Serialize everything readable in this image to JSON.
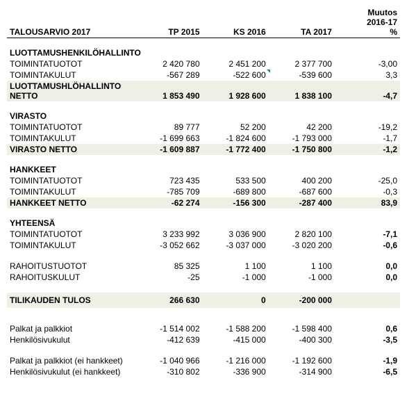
{
  "header": {
    "title": "TALOUSARVIO 2017",
    "col1": "TP 2015",
    "col2": "KS 2016",
    "col3": "TA 2017",
    "col4a": "Muutos",
    "col4b": "2016-17",
    "col4c": "%"
  },
  "sections": {
    "luott": {
      "title": "LUOTTAMUSHENKILÖHALLINTO",
      "r1": {
        "label": "TOIMINTATUOTOT",
        "c1": "2 420 780",
        "c2": "2 451 200",
        "c3": "2 377 700",
        "c4": "-3,00"
      },
      "r2": {
        "label": "TOIMINTAKULUT",
        "c1": "-567 289",
        "c2": "-522 600",
        "c3": "-539 600",
        "c4": "3,3"
      },
      "net": {
        "label": "LUOTTAMUSHLÖHALLINTO NETTO",
        "c1": "1 853 490",
        "c2": "1 928 600",
        "c3": "1 838 100",
        "c4": "-4,7"
      }
    },
    "virasto": {
      "title": "VIRASTO",
      "r1": {
        "label": "TOIMINTATUOTOT",
        "c1": "89 777",
        "c2": "52 200",
        "c3": "42 200",
        "c4": "-19,2"
      },
      "r2": {
        "label": "TOIMINTAKULUT",
        "c1": "-1 699 663",
        "c2": "-1 824 600",
        "c3": "-1 793 000",
        "c4": "-1,7"
      },
      "net": {
        "label": "VIRASTO NETTO",
        "c1": "-1 609 887",
        "c2": "-1 772 400",
        "c3": "-1 750 800",
        "c4": "-1,2"
      }
    },
    "hankkeet": {
      "title": "HANKKEET",
      "r1": {
        "label": "TOIMINTATUOTOT",
        "c1": "723 435",
        "c2": "533 500",
        "c3": "400 200",
        "c4": "-25,0"
      },
      "r2": {
        "label": "TOIMINTAKULUT",
        "c1": "-785 709",
        "c2": "-689 800",
        "c3": "-687 600",
        "c4": "-0,3"
      },
      "net": {
        "label": "HANKKEET NETTO",
        "c1": "-62 274",
        "c2": "-156 300",
        "c3": "-287 400",
        "c4": "83,9"
      }
    },
    "yhteensa": {
      "title": "YHTEENSÄ",
      "r1": {
        "label": "TOIMINTATUOTOT",
        "c1": "3 233 992",
        "c2": "3 036 900",
        "c3": "2 820 100",
        "c4": "-7,1"
      },
      "r2": {
        "label": "TOIMINTAKULUT",
        "c1": "-3 052 662",
        "c2": "-3 037 000",
        "c3": "-3 020 200",
        "c4": "-0,6"
      }
    },
    "rahoitus": {
      "r1": {
        "label": "RAHOITUSTUOTOT",
        "c1": "85 325",
        "c2": "1 100",
        "c3": "1 100",
        "c4": "0,0"
      },
      "r2": {
        "label": "RAHOITUSKULUT",
        "c1": "-25",
        "c2": "-1 000",
        "c3": "-1 000",
        "c4": "0,0"
      }
    },
    "tilikauden": {
      "label": "TILIKAUDEN TULOS",
      "c1": "266 630",
      "c2": "0",
      "c3": "-200 000",
      "c4": ""
    },
    "palkat1": {
      "r1": {
        "label": "Palkat ja palkkiot",
        "c1": "-1 514 002",
        "c2": "-1 588 200",
        "c3": "-1 598 400",
        "c4": "0,6"
      },
      "r2": {
        "label": "Henkilösivukulut",
        "c1": "-412 639",
        "c2": "-415 000",
        "c3": "-400 300",
        "c4": "-3,5"
      }
    },
    "palkat2": {
      "r1": {
        "label": "Palkat ja palkkiot (ei hankkeet)",
        "c1": "-1 040 966",
        "c2": "-1 216 000",
        "c3": "-1 192 600",
        "c4": "-1,9"
      },
      "r2": {
        "label": "Henkilösivukulut (ei hankkeet)",
        "c1": "-310 802",
        "c2": "-336 900",
        "c3": "-314 900",
        "c4": "-6,5"
      }
    }
  },
  "style": {
    "netto_bg": "#efefe5",
    "text_color": "#000000",
    "bg_color": "#ffffff",
    "font_size": 12,
    "marker_color": "#2e8b57"
  }
}
